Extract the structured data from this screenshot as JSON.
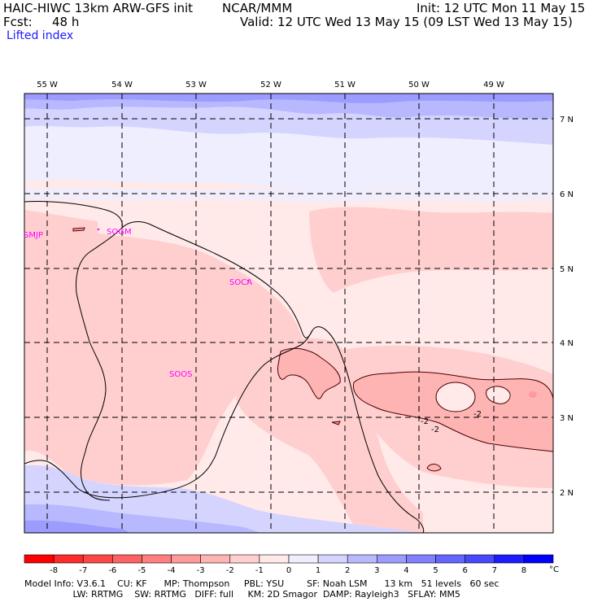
{
  "header": {
    "title": "HAIC-HIWC 13km ARW-GFS init",
    "org": "NCAR/MMM",
    "init": "Init: 12 UTC Mon 11 May 15",
    "fcst_label": "Fcst:",
    "fcst_value": "48 h",
    "valid": "Valid: 12 UTC Wed 13 May 15 (09 LST Wed 13 May 15)",
    "field": "Lifted index"
  },
  "map": {
    "lon_labels": [
      "55 W",
      "54 W",
      "53 W",
      "52 W",
      "51 W",
      "50 W",
      "49 W"
    ],
    "lat_labels": [
      "7 N",
      "6 N",
      "5 N",
      "4 N",
      "3 N",
      "2 N"
    ],
    "stations": [
      {
        "id": "SMJP"
      },
      {
        "id": "SOGM"
      },
      {
        "id": "SOCA"
      },
      {
        "id": "SOOS"
      }
    ],
    "contour_labels": [
      "-2",
      "-2",
      "-2"
    ]
  },
  "colorbar": {
    "labels": [
      "-8",
      "-7",
      "-6",
      "-5",
      "-4",
      "-3",
      "-2",
      "-1",
      "0",
      "1",
      "2",
      "3",
      "4",
      "5",
      "6",
      "7",
      "8"
    ],
    "unit": "°C",
    "colors": [
      "#ff0000",
      "#ff2a2a",
      "#ff4646",
      "#ff6262",
      "#ff7e7e",
      "#ff9a9a",
      "#ffb4b4",
      "#ffcfcf",
      "#ffe9e9",
      "#eeeeff",
      "#d4d4ff",
      "#b8b8ff",
      "#9c9cff",
      "#8080ff",
      "#6464ff",
      "#4848ff",
      "#1c1cff",
      "#0000ff"
    ]
  },
  "footer": {
    "line1": "Model Info: V3.6.1    CU: KF      MP: Thompson     PBL: YSU        SF: Noah LSM      13 km   51 levels   60 sec",
    "line2": "                 LW: RRTMG    SW: RRTMG   DIFF: full     KM: 2D Smagor  DAMP: Rayleigh3   SFLAY: MM5"
  }
}
